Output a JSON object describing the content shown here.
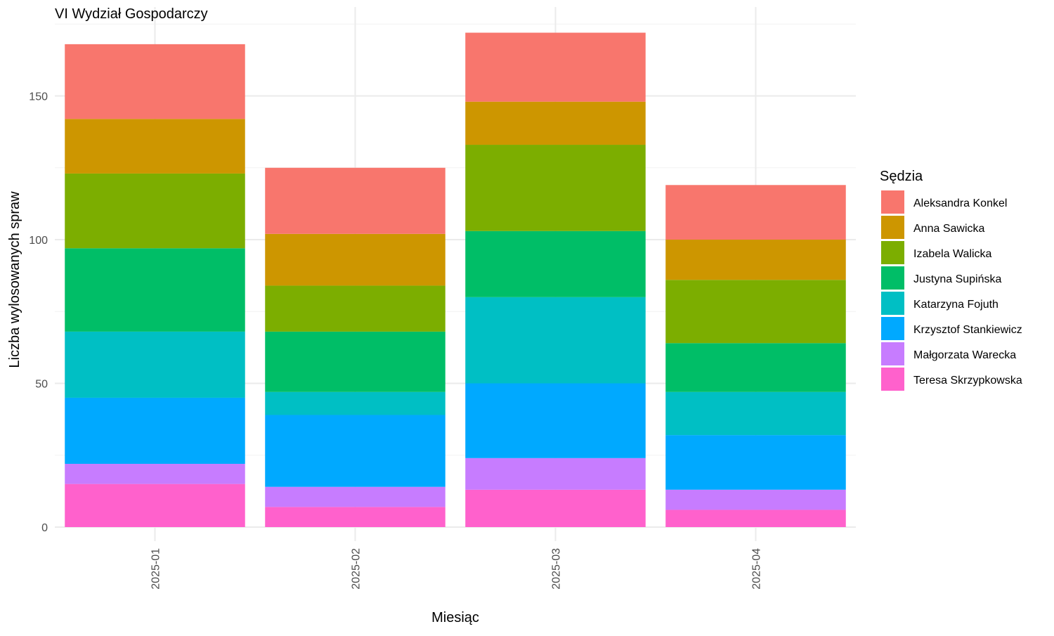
{
  "chart_data": {
    "type": "bar",
    "stacked": true,
    "title": "VI Wydział Gospodarczy",
    "xlabel": "Miesiąc",
    "ylabel": "Liczba wylosowanych spraw",
    "ylim": [
      0,
      180
    ],
    "yticks": [
      0,
      50,
      100,
      150
    ],
    "grid": true,
    "legend_title": "Sędzia",
    "legend_position": "right",
    "categories": [
      "2025-01",
      "2025-02",
      "2025-03",
      "2025-04"
    ],
    "series": [
      {
        "name": "Teresa Skrzypkowska",
        "color": "#FF61CC",
        "values": [
          15,
          7,
          13,
          6
        ]
      },
      {
        "name": "Małgorzata Warecka",
        "color": "#C77CFF",
        "values": [
          7,
          7,
          11,
          7
        ]
      },
      {
        "name": "Krzysztof Stankiewicz",
        "color": "#00A9FF",
        "values": [
          23,
          25,
          26,
          19
        ]
      },
      {
        "name": "Katarzyna Fojuth",
        "color": "#00BFC4",
        "values": [
          23,
          8,
          30,
          15
        ]
      },
      {
        "name": "Justyna Supińska",
        "color": "#00BE67",
        "values": [
          29,
          21,
          23,
          17
        ]
      },
      {
        "name": "Izabela Walicka",
        "color": "#7CAE00",
        "values": [
          26,
          16,
          30,
          22
        ]
      },
      {
        "name": "Anna Sawicka",
        "color": "#CD9600",
        "values": [
          19,
          18,
          15,
          14
        ]
      },
      {
        "name": "Aleksandra Konkel",
        "color": "#F8766D",
        "values": [
          26,
          23,
          24,
          19
        ]
      }
    ],
    "legend_order": [
      "Aleksandra Konkel",
      "Anna Sawicka",
      "Izabela Walicka",
      "Justyna Supińska",
      "Katarzyna Fojuth",
      "Krzysztof Stankiewicz",
      "Małgorzata Warecka",
      "Teresa Skrzypkowska"
    ]
  }
}
